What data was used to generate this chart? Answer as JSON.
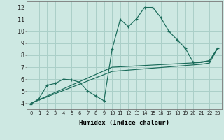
{
  "xlabel": "Humidex (Indice chaleur)",
  "xlim": [
    -0.5,
    23.5
  ],
  "ylim": [
    3.5,
    12.5
  ],
  "xticks": [
    0,
    1,
    2,
    3,
    4,
    5,
    6,
    7,
    8,
    9,
    10,
    11,
    12,
    13,
    14,
    15,
    16,
    17,
    18,
    19,
    20,
    21,
    22,
    23
  ],
  "yticks": [
    4,
    5,
    6,
    7,
    8,
    9,
    10,
    11,
    12
  ],
  "background_color": "#cde8e2",
  "grid_color": "#aacfc8",
  "line_color": "#1a6b5a",
  "main_x": [
    0,
    1,
    2,
    3,
    4,
    5,
    6,
    7,
    8,
    9,
    10,
    11,
    12,
    13,
    14,
    15,
    16,
    17,
    18,
    19,
    20,
    21,
    22,
    23
  ],
  "main_y": [
    3.9,
    4.4,
    5.5,
    5.65,
    6.0,
    5.95,
    5.75,
    5.0,
    4.6,
    4.2,
    8.5,
    11.0,
    10.4,
    11.05,
    12.0,
    12.0,
    11.15,
    10.0,
    9.3,
    8.6,
    7.4,
    7.45,
    7.55,
    8.6
  ],
  "line2_x": [
    0,
    10,
    21,
    22,
    23
  ],
  "line2_y": [
    4.0,
    7.0,
    7.4,
    7.55,
    8.6
  ],
  "line3_x": [
    0,
    10,
    21,
    22,
    23
  ],
  "line3_y": [
    4.0,
    6.65,
    7.25,
    7.35,
    8.6
  ],
  "xlabel_fontsize": 6.5,
  "tick_fontsize_x": 5.0,
  "tick_fontsize_y": 6.0
}
